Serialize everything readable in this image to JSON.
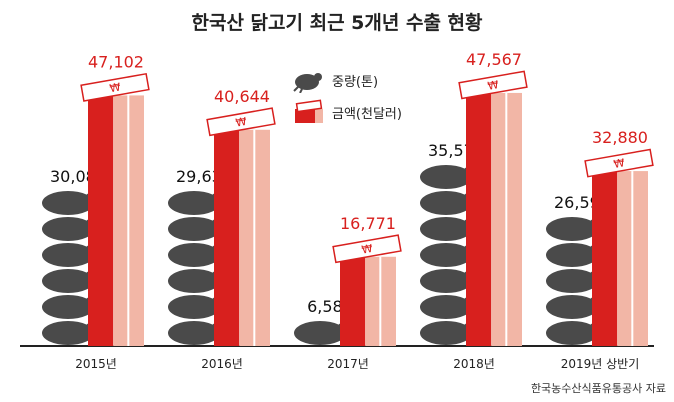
{
  "title": "한국산 닭고기 최근 5개년 수출 현황",
  "source": "한국농수산식품유통공사 자료",
  "legend": {
    "weight_label": "중량(톤)",
    "amount_label": "금액(천달러)"
  },
  "colors": {
    "chicken": "#4a4a4a",
    "bar_dark": "#d8201e",
    "bar_light": "#f2b6a6",
    "amount_text": "#d8201e",
    "weight_text": "#111111",
    "baseline": "#222222"
  },
  "chart_data": {
    "type": "bar",
    "title": "한국산 닭고기 최근 5개년 수출 현황",
    "categories": [
      "2015년",
      "2016년",
      "2017년",
      "2018년",
      "2019년 상반기"
    ],
    "series": [
      {
        "name": "중량(톤)",
        "values": [
          30083,
          29632,
          6584,
          35579,
          26594
        ],
        "labels": [
          "30,083",
          "29,632",
          "6,584",
          "35,579",
          "26,594"
        ]
      },
      {
        "name": "금액(천달러)",
        "values": [
          47102,
          40644,
          16771,
          47567,
          32880
        ],
        "labels": [
          "47,102",
          "40,644",
          "16,771",
          "47,567",
          "32,880"
        ]
      }
    ],
    "ylim": [
      0,
      50000
    ],
    "grid": false,
    "legend_position": "top-center"
  }
}
